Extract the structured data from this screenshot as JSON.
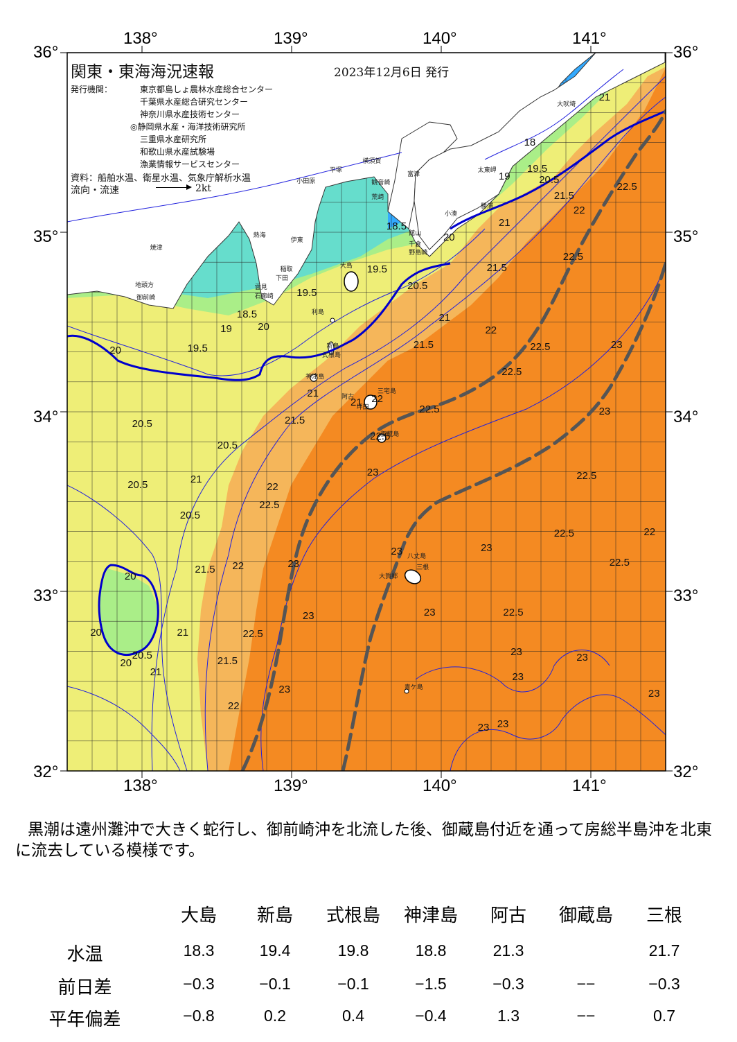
{
  "map": {
    "title": "関東・東海海況速報",
    "date": "2023年12月6日 発行",
    "issuer_label": "発行機関：",
    "issuers": [
      "東京都島しょ農林水産総合センター",
      "千葉県水産総合研究センター",
      "神奈川県水産技術センター",
      "◎静岡県水産・海洋技術研究所",
      "三重県水産研究所",
      "和歌山県水産試験場",
      "漁業情報サービスセンター"
    ],
    "source_label": "資料：船舶水温、衛星水温、気象庁解析水温",
    "flow_label": "流向・流速",
    "flow_scale": "2kt",
    "lon_labels": [
      "138°",
      "139°",
      "140°",
      "141°"
    ],
    "lat_labels": [
      "36°",
      "35°",
      "34°",
      "33°",
      "32°"
    ],
    "places": [
      {
        "name": "大吠埼",
        "lon": 140.82,
        "lat": 35.72
      },
      {
        "name": "太東岬",
        "lon": 140.29,
        "lat": 35.35
      },
      {
        "name": "勝浦",
        "lon": 140.31,
        "lat": 35.15
      },
      {
        "name": "小湊",
        "lon": 140.07,
        "lat": 35.11
      },
      {
        "name": "富津",
        "lon": 139.82,
        "lat": 35.33
      },
      {
        "name": "横須賀",
        "lon": 139.52,
        "lat": 35.4
      },
      {
        "name": "観音崎",
        "lon": 139.58,
        "lat": 35.28
      },
      {
        "name": "荒崎",
        "lon": 139.58,
        "lat": 35.2
      },
      {
        "name": "平塚",
        "lon": 139.3,
        "lat": 35.35
      },
      {
        "name": "小田原",
        "lon": 139.08,
        "lat": 35.29
      },
      {
        "name": "館山",
        "lon": 139.83,
        "lat": 35.0
      },
      {
        "name": "千倉",
        "lon": 139.83,
        "lat": 34.94
      },
      {
        "name": "野島崎",
        "lon": 139.83,
        "lat": 34.89
      },
      {
        "name": "熱海",
        "lon": 138.79,
        "lat": 34.99
      },
      {
        "name": "伊東",
        "lon": 139.04,
        "lat": 34.96
      },
      {
        "name": "大島",
        "lon": 139.37,
        "lat": 34.82
      },
      {
        "name": "稲取",
        "lon": 138.97,
        "lat": 34.8
      },
      {
        "name": "下田",
        "lon": 138.94,
        "lat": 34.75
      },
      {
        "name": "雲見",
        "lon": 138.8,
        "lat": 34.7
      },
      {
        "name": "石廊崎",
        "lon": 138.8,
        "lat": 34.65
      },
      {
        "name": "焼津",
        "lon": 138.1,
        "lat": 34.92
      },
      {
        "name": "地頭方",
        "lon": 138.0,
        "lat": 34.71
      },
      {
        "name": "御前崎",
        "lon": 138.01,
        "lat": 34.64
      },
      {
        "name": "利島",
        "lon": 139.18,
        "lat": 34.56
      },
      {
        "name": "新島",
        "lon": 139.28,
        "lat": 34.37
      },
      {
        "name": "式根島",
        "lon": 139.25,
        "lat": 34.32
      },
      {
        "name": "神津島",
        "lon": 139.14,
        "lat": 34.2
      },
      {
        "name": "三宅島",
        "lon": 139.62,
        "lat": 34.12
      },
      {
        "name": "阿古",
        "lon": 139.38,
        "lat": 34.09
      },
      {
        "name": "坪田",
        "lon": 139.48,
        "lat": 34.03
      },
      {
        "name": "御蔵島",
        "lon": 139.64,
        "lat": 33.88
      },
      {
        "name": "八丈島",
        "lon": 139.82,
        "lat": 33.2
      },
      {
        "name": "三根",
        "lon": 139.88,
        "lat": 33.14
      },
      {
        "name": "大賀郷",
        "lon": 139.63,
        "lat": 33.09
      },
      {
        "name": "青ケ島",
        "lon": 139.8,
        "lat": 32.47
      }
    ],
    "isotherm_labels": [
      {
        "t": "18",
        "lon": 140.6,
        "lat": 35.5
      },
      {
        "t": "19",
        "lon": 140.43,
        "lat": 35.31
      },
      {
        "t": "19.5",
        "lon": 140.62,
        "lat": 35.35
      },
      {
        "t": "20.5",
        "lon": 140.7,
        "lat": 35.29
      },
      {
        "t": "21",
        "lon": 141.1,
        "lat": 35.75
      },
      {
        "t": "21.5",
        "lon": 140.8,
        "lat": 35.2
      },
      {
        "t": "22",
        "lon": 140.93,
        "lat": 35.12
      },
      {
        "t": "22.5",
        "lon": 141.22,
        "lat": 35.25
      },
      {
        "t": "21",
        "lon": 140.43,
        "lat": 35.05
      },
      {
        "t": "20",
        "lon": 140.06,
        "lat": 34.97
      },
      {
        "t": "18.5",
        "lon": 139.68,
        "lat": 35.03
      },
      {
        "t": "19.5",
        "lon": 139.55,
        "lat": 34.79
      },
      {
        "t": "20.5",
        "lon": 139.82,
        "lat": 34.7
      },
      {
        "t": "21",
        "lon": 140.03,
        "lat": 34.52
      },
      {
        "t": "21.5",
        "lon": 140.35,
        "lat": 34.8
      },
      {
        "t": "22.5",
        "lon": 140.86,
        "lat": 34.86
      },
      {
        "t": "19.5",
        "lon": 139.08,
        "lat": 34.66
      },
      {
        "t": "18.5",
        "lon": 138.68,
        "lat": 34.54
      },
      {
        "t": "19",
        "lon": 138.57,
        "lat": 34.46
      },
      {
        "t": "20",
        "lon": 138.82,
        "lat": 34.47
      },
      {
        "t": "19.5",
        "lon": 138.35,
        "lat": 34.35
      },
      {
        "t": "20",
        "lon": 137.83,
        "lat": 34.34
      },
      {
        "t": "21.5",
        "lon": 139.86,
        "lat": 34.37
      },
      {
        "t": "22",
        "lon": 140.34,
        "lat": 34.45
      },
      {
        "t": "22.5",
        "lon": 140.64,
        "lat": 34.36
      },
      {
        "t": "22.5",
        "lon": 140.45,
        "lat": 34.22
      },
      {
        "t": "23",
        "lon": 141.18,
        "lat": 34.37
      },
      {
        "t": "23",
        "lon": 141.1,
        "lat": 34.0
      },
      {
        "t": "22.5",
        "lon": 139.9,
        "lat": 34.01
      },
      {
        "t": "21",
        "lon": 139.15,
        "lat": 34.1
      },
      {
        "t": "21.5",
        "lon": 139.0,
        "lat": 33.95
      },
      {
        "t": "21",
        "lon": 139.44,
        "lat": 34.05
      },
      {
        "t": "22",
        "lon": 139.58,
        "lat": 34.07
      },
      {
        "t": "22.5",
        "lon": 139.57,
        "lat": 33.86
      },
      {
        "t": "20.5",
        "lon": 137.98,
        "lat": 33.93
      },
      {
        "t": "20.5",
        "lon": 138.55,
        "lat": 33.81
      },
      {
        "t": "23",
        "lon": 139.55,
        "lat": 33.66
      },
      {
        "t": "22.5",
        "lon": 140.95,
        "lat": 33.64
      },
      {
        "t": "21",
        "lon": 138.37,
        "lat": 33.62
      },
      {
        "t": "20.5",
        "lon": 137.95,
        "lat": 33.59
      },
      {
        "t": "22",
        "lon": 138.88,
        "lat": 33.58
      },
      {
        "t": "22.5",
        "lon": 138.83,
        "lat": 33.48
      },
      {
        "t": "20.5",
        "lon": 138.3,
        "lat": 33.42
      },
      {
        "t": "22.5",
        "lon": 140.8,
        "lat": 33.32
      },
      {
        "t": "22",
        "lon": 141.4,
        "lat": 33.33
      },
      {
        "t": "23",
        "lon": 140.31,
        "lat": 33.24
      },
      {
        "t": "23",
        "lon": 139.71,
        "lat": 33.22
      },
      {
        "t": "22.5",
        "lon": 141.17,
        "lat": 33.16
      },
      {
        "t": "21.5",
        "lon": 138.4,
        "lat": 33.12
      },
      {
        "t": "22",
        "lon": 138.65,
        "lat": 33.14
      },
      {
        "t": "23",
        "lon": 139.02,
        "lat": 33.15
      },
      {
        "t": "20",
        "lon": 137.93,
        "lat": 33.08
      },
      {
        "t": "23",
        "lon": 139.12,
        "lat": 32.86
      },
      {
        "t": "23",
        "lon": 139.93,
        "lat": 32.88
      },
      {
        "t": "22.5",
        "lon": 140.46,
        "lat": 32.88
      },
      {
        "t": "20",
        "lon": 137.7,
        "lat": 32.77
      },
      {
        "t": "21",
        "lon": 138.28,
        "lat": 32.77
      },
      {
        "t": "22.5",
        "lon": 138.72,
        "lat": 32.76
      },
      {
        "t": "23",
        "lon": 140.51,
        "lat": 32.66
      },
      {
        "t": "23",
        "lon": 140.95,
        "lat": 32.63
      },
      {
        "t": "20.5",
        "lon": 137.98,
        "lat": 32.64
      },
      {
        "t": "20",
        "lon": 137.9,
        "lat": 32.6
      },
      {
        "t": "21.5",
        "lon": 138.55,
        "lat": 32.61
      },
      {
        "t": "21",
        "lon": 138.1,
        "lat": 32.55
      },
      {
        "t": "23",
        "lon": 140.52,
        "lat": 32.52
      },
      {
        "t": "23",
        "lon": 138.96,
        "lat": 32.45
      },
      {
        "t": "22",
        "lon": 138.62,
        "lat": 32.36
      },
      {
        "t": "23",
        "lon": 141.43,
        "lat": 32.43
      },
      {
        "t": "23",
        "lon": 140.29,
        "lat": 32.24
      },
      {
        "t": "23",
        "lon": 140.42,
        "lat": 32.26
      }
    ],
    "colors": {
      "t_cold": "#33aaff",
      "t_cool": "#66ddcc",
      "t_mid": "#aaee88",
      "t_warm": "#eeee77",
      "t_hot": "#f5b65a",
      "t_kuroshio": "#f48a22",
      "isotherm": "#2020dd",
      "front": "#0000cc",
      "axis_kuroshio": "#555555"
    }
  },
  "summary": "黒潮は遠州灘沖で大きく蛇行し、御前崎沖を北流した後、御蔵島付近を通って房総半島沖を北東に流去している模様です。",
  "table": {
    "headers": [
      "大島",
      "新島",
      "式根島",
      "神津島",
      "阿古",
      "御蔵島",
      "三根"
    ],
    "rows": [
      {
        "label": "水温",
        "values": [
          "18.3",
          "19.4",
          "19.8",
          "18.8",
          "21.3",
          "",
          "21.7"
        ]
      },
      {
        "label": "前日差",
        "values": [
          "−0.3",
          "−0.1",
          "−0.1",
          "−1.5",
          "−0.3",
          "−−",
          "−0.3"
        ]
      },
      {
        "label": "平年偏差",
        "values": [
          "−0.8",
          "0.2",
          "0.4",
          "−0.4",
          "1.3",
          "−−",
          "0.7"
        ]
      }
    ]
  }
}
